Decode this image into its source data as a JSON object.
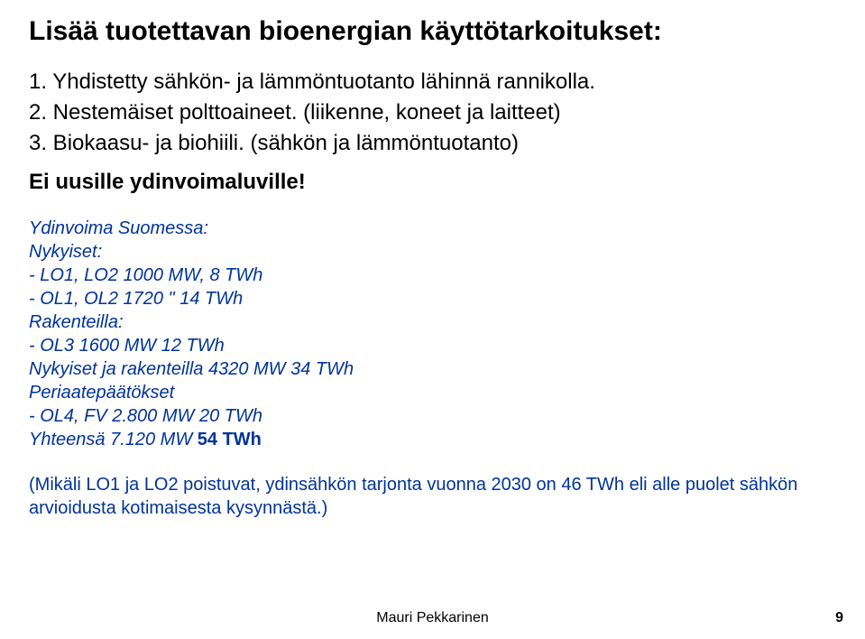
{
  "colors": {
    "blue": "#003399",
    "black": "#000000",
    "background": "#ffffff"
  },
  "title": "Lisää tuotettavan bioenergian käyttötarkoitukset:",
  "items": [
    "1. Yhdistetty sähkön- ja lämmöntuotanto lähinnä rannikolla.",
    "2. Nestemäiset polttoaineet. (liikenne, koneet ja laitteet)",
    "3. Biokaasu- ja biohiili. (sähkön ja lämmöntuotanto)"
  ],
  "subheading": "Ei uusille ydinvoimaluville!",
  "nuclear": {
    "heading": "Ydinvoima Suomessa:",
    "current_label": "Nykyiset:",
    "current": [
      "- LO1, LO2 1000 MW, 8 TWh",
      "- OL1, OL2 1720 \" 14 TWh"
    ],
    "construction_label": "Rakenteilla:",
    "construction": [
      "- OL3 1600 MW 12 TWh"
    ],
    "sum_current_construction": "Nykyiset ja rakenteilla 4320 MW 34 TWh",
    "principle_label": "Periaatepäätökset",
    "principle": [
      "- OL4, FV 2.800 MW 20 TWh"
    ],
    "total_prefix": "Yhteensä 7.120 MW ",
    "total_bold": "54 TWh"
  },
  "note": "(Mikäli LO1 ja LO2 poistuvat, ydinsähkön tarjonta vuonna 2030 on 46 TWh eli alle puolet sähkön arvioidusta kotimaisesta kysynnästä.)",
  "footer": "Mauri Pekkarinen",
  "page_number": "9"
}
